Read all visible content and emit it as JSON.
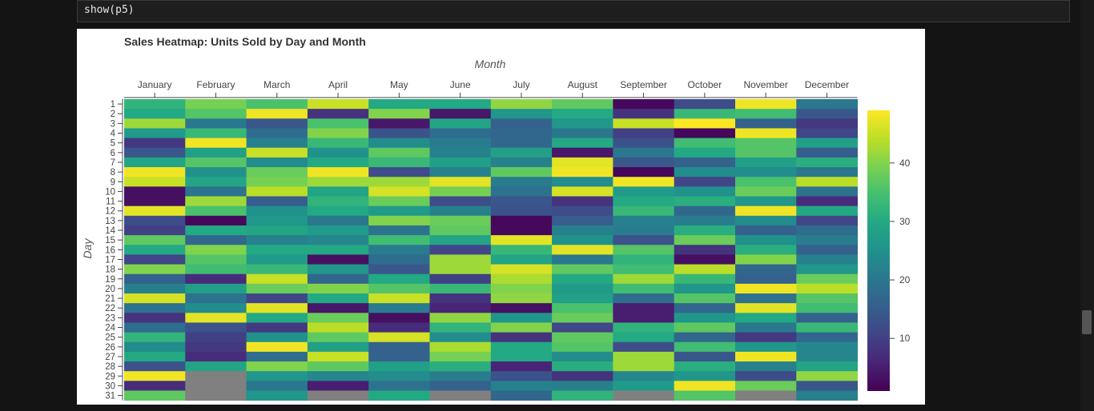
{
  "code_cell": {
    "text": "show(p5)"
  },
  "colors": {
    "missing": "#808080",
    "palette": "viridis"
  },
  "chart_data": {
    "type": "heatmap",
    "title": "Sales Heatmap: Units Sold by Day and Month",
    "xlabel": "Month",
    "ylabel": "Day",
    "x_axis_position": "top",
    "colorbar": {
      "position": "right",
      "range": [
        1,
        49
      ],
      "ticks": [
        10,
        20,
        30,
        40
      ]
    },
    "months": [
      "January",
      "February",
      "March",
      "April",
      "May",
      "June",
      "July",
      "August",
      "September",
      "October",
      "November",
      "December"
    ],
    "days": [
      "1",
      "2",
      "3",
      "4",
      "5",
      "6",
      "7",
      "8",
      "9",
      "10",
      "11",
      "12",
      "13",
      "14",
      "15",
      "16",
      "17",
      "18",
      "19",
      "20",
      "21",
      "22",
      "23",
      "24",
      "25",
      "26",
      "27",
      "28",
      "29",
      "30",
      "31"
    ],
    "values": [
      [
        32,
        39,
        35,
        45,
        30,
        30,
        41,
        37,
        2,
        12,
        48,
        20
      ],
      [
        30,
        36,
        48,
        8,
        40,
        4,
        26,
        30,
        8,
        33,
        34,
        14
      ],
      [
        42,
        20,
        14,
        35,
        4,
        29,
        16,
        26,
        45,
        49,
        16,
        9
      ],
      [
        27,
        33,
        18,
        40,
        13,
        18,
        17,
        20,
        10,
        2,
        48,
        11
      ],
      [
        9,
        48,
        22,
        33,
        24,
        21,
        17,
        30,
        13,
        34,
        36,
        28
      ],
      [
        14,
        28,
        45,
        25,
        37,
        22,
        28,
        4,
        20,
        30,
        36,
        15
      ],
      [
        29,
        36,
        24,
        30,
        33,
        28,
        22,
        47,
        14,
        16,
        28,
        31
      ],
      [
        48,
        25,
        38,
        48,
        12,
        22,
        37,
        48,
        2,
        24,
        24,
        20
      ],
      [
        45,
        29,
        39,
        42,
        42,
        47,
        21,
        24,
        48,
        11,
        35,
        44
      ],
      [
        3,
        19,
        44,
        29,
        46,
        39,
        19,
        46,
        27,
        25,
        38,
        19
      ],
      [
        3,
        42,
        15,
        32,
        38,
        12,
        14,
        8,
        30,
        31,
        26,
        7
      ],
      [
        47,
        35,
        25,
        30,
        27,
        22,
        13,
        12,
        33,
        17,
        48,
        30
      ],
      [
        12,
        2,
        26,
        20,
        40,
        38,
        2,
        15,
        22,
        21,
        24,
        11
      ],
      [
        10,
        30,
        29,
        27,
        19,
        37,
        2,
        22,
        21,
        31,
        16,
        18
      ],
      [
        37,
        17,
        22,
        23,
        34,
        29,
        47,
        25,
        13,
        38,
        25,
        21
      ],
      [
        30,
        40,
        30,
        30,
        21,
        11,
        33,
        47,
        36,
        8,
        31,
        16
      ],
      [
        11,
        36,
        27,
        3,
        18,
        42,
        29,
        20,
        32,
        3,
        40,
        22
      ],
      [
        40,
        34,
        33,
        26,
        14,
        42,
        46,
        37,
        34,
        44,
        17,
        26
      ],
      [
        16,
        7,
        45,
        17,
        30,
        10,
        43,
        30,
        42,
        33,
        16,
        38
      ],
      [
        22,
        28,
        38,
        40,
        36,
        33,
        40,
        27,
        34,
        26,
        48,
        44
      ],
      [
        46,
        19,
        11,
        30,
        45,
        8,
        41,
        28,
        18,
        36,
        19,
        36
      ],
      [
        19,
        24,
        47,
        4,
        21,
        6,
        3,
        35,
        5,
        17,
        47,
        34
      ],
      [
        8,
        47,
        30,
        38,
        3,
        41,
        26,
        38,
        5,
        26,
        30,
        16
      ],
      [
        18,
        13,
        9,
        44,
        7,
        32,
        40,
        11,
        32,
        37,
        20,
        33
      ],
      [
        32,
        10,
        25,
        37,
        46,
        24,
        8,
        37,
        30,
        17,
        9,
        17
      ],
      [
        24,
        9,
        48,
        28,
        16,
        43,
        30,
        36,
        12,
        34,
        26,
        23
      ],
      [
        30,
        7,
        18,
        45,
        16,
        39,
        30,
        24,
        42,
        14,
        48,
        23
      ],
      [
        13,
        29,
        40,
        37,
        28,
        31,
        6,
        31,
        42,
        31,
        22,
        29
      ],
      [
        48,
        null,
        26,
        23,
        24,
        21,
        13,
        8,
        23,
        26,
        12,
        41
      ],
      [
        7,
        null,
        20,
        5,
        19,
        16,
        22,
        22,
        27,
        48,
        38,
        14
      ],
      [
        37,
        null,
        26,
        null,
        30,
        null,
        17,
        32,
        null,
        36,
        null,
        22
      ]
    ]
  }
}
